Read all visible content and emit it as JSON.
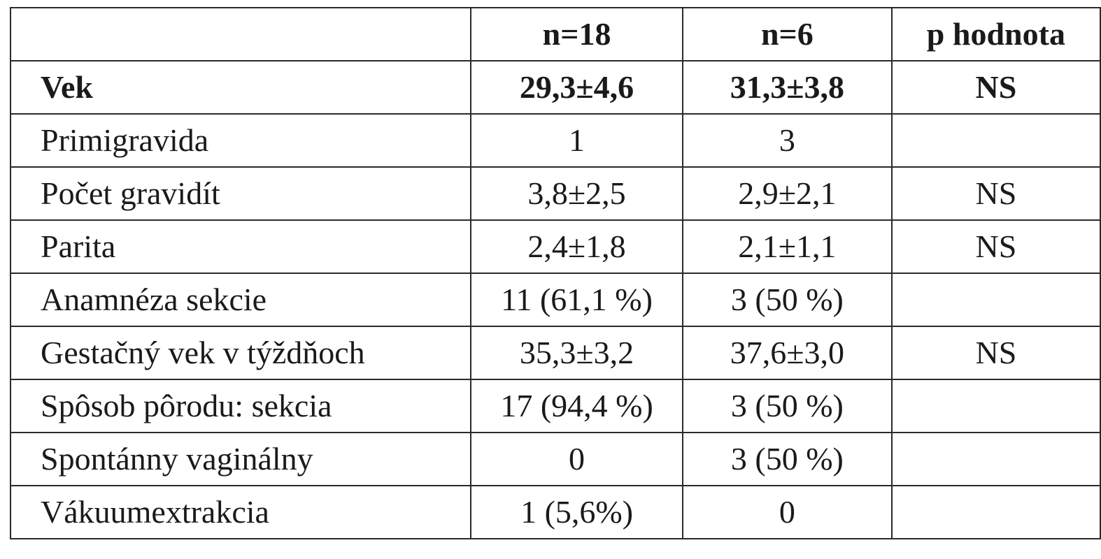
{
  "table": {
    "headers": {
      "label": "",
      "group_a": "n=18",
      "group_b": "n=6",
      "p": "p hodnota"
    },
    "rows": [
      {
        "label": "Vek",
        "group_a": "29,3±4,6",
        "group_b": "31,3±3,8",
        "p": "NS",
        "bold": true
      },
      {
        "label": "Primigravida",
        "group_a": "1",
        "group_b": "3",
        "p": ""
      },
      {
        "label": "Počet gravidít",
        "group_a": "3,8±2,5",
        "group_b": "2,9±2,1",
        "p": "NS"
      },
      {
        "label": "Parita",
        "group_a": "2,4±1,8",
        "group_b": "2,1±1,1",
        "p": "NS"
      },
      {
        "label": "Anamnéza sekcie",
        "group_a": "11 (61,1 %)",
        "group_b": "3 (50 %)",
        "p": ""
      },
      {
        "label": "Gestačný vek v týždňoch",
        "group_a": "35,3±3,2",
        "group_b": "37,6±3,0",
        "p": "NS"
      },
      {
        "label": "Spôsob pôrodu: sekcia",
        "group_a": "17 (94,4 %)",
        "group_b": "3 (50 %)",
        "p": ""
      },
      {
        "label": "Spontánny vaginálny",
        "group_a": "0",
        "group_b": "3 (50 %)",
        "p": ""
      },
      {
        "label": "Vákuumextrakcia",
        "group_a": "1 (5,6%)",
        "group_b": "0",
        "p": ""
      }
    ]
  }
}
